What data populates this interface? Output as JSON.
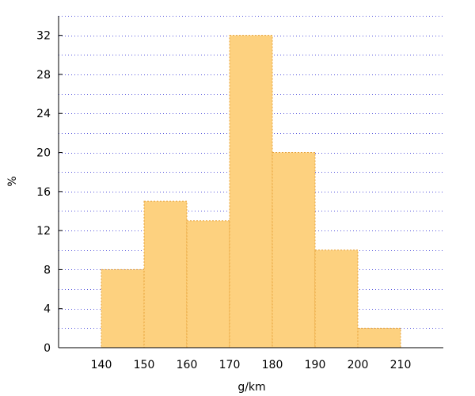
{
  "chart_data": {
    "type": "bar",
    "histogram": true,
    "bins": [
      {
        "start": 140,
        "end": 150,
        "value": 8
      },
      {
        "start": 150,
        "end": 160,
        "value": 15
      },
      {
        "start": 160,
        "end": 170,
        "value": 13
      },
      {
        "start": 170,
        "end": 180,
        "value": 32
      },
      {
        "start": 180,
        "end": 190,
        "value": 20
      },
      {
        "start": 190,
        "end": 200,
        "value": 10
      },
      {
        "start": 200,
        "end": 210,
        "value": 2
      }
    ],
    "xlabel": "g/km",
    "ylabel": "%",
    "xlim": [
      130,
      220
    ],
    "ylim": [
      0,
      34
    ],
    "x_ticks": [
      "140",
      "150",
      "160",
      "170",
      "180",
      "190",
      "200",
      "210"
    ],
    "y_ticks": [
      "0",
      "4",
      "8",
      "12",
      "16",
      "20",
      "24",
      "28",
      "32"
    ],
    "grid": "horizontal dotted",
    "colors": {
      "bar_fill": "#fdd17f",
      "bar_edge": "#e6a23a",
      "grid": "#5555dd",
      "axis": "#000000"
    }
  }
}
